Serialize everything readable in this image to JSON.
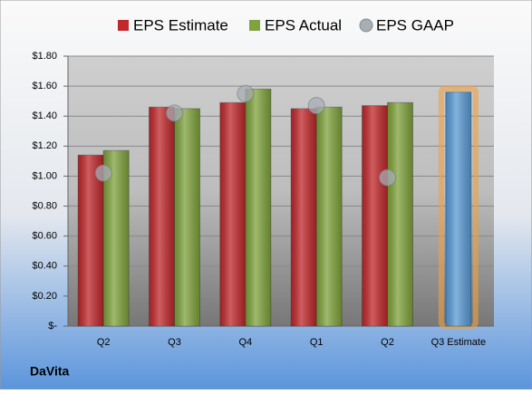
{
  "chart_data": {
    "type": "bar",
    "categories": [
      "Q2",
      "Q3",
      "Q4",
      "Q1",
      "Q2",
      "Q3 Estimate"
    ],
    "series": [
      {
        "name": "EPS Estimate",
        "color": "#c0282b",
        "values": [
          1.14,
          1.46,
          1.49,
          1.45,
          1.47,
          1.56
        ]
      },
      {
        "name": "EPS Actual",
        "color": "#7fa33c",
        "values": [
          1.17,
          1.45,
          1.58,
          1.46,
          1.49,
          null
        ]
      },
      {
        "name": "EPS GAAP",
        "color": "#a8aeb6",
        "values": [
          1.02,
          1.42,
          1.55,
          1.47,
          0.99,
          null
        ],
        "marker": "circle"
      }
    ],
    "highlight_color": "#5b9bd5",
    "ylim": [
      0,
      1.8
    ],
    "yticks": [
      {
        "value": 0,
        "label": "$-"
      },
      {
        "value": 0.2,
        "label": "$0.20"
      },
      {
        "value": 0.4,
        "label": "$0.40"
      },
      {
        "value": 0.6,
        "label": "$0.60"
      },
      {
        "value": 0.8,
        "label": "$0.80"
      },
      {
        "value": 1.0,
        "label": "$1.00"
      },
      {
        "value": 1.2,
        "label": "$1.20"
      },
      {
        "value": 1.4,
        "label": "$1.40"
      },
      {
        "value": 1.6,
        "label": "$1.60"
      },
      {
        "value": 1.8,
        "label": "$1.80"
      }
    ],
    "grid": true,
    "legend": "top",
    "company": "DaVita"
  }
}
